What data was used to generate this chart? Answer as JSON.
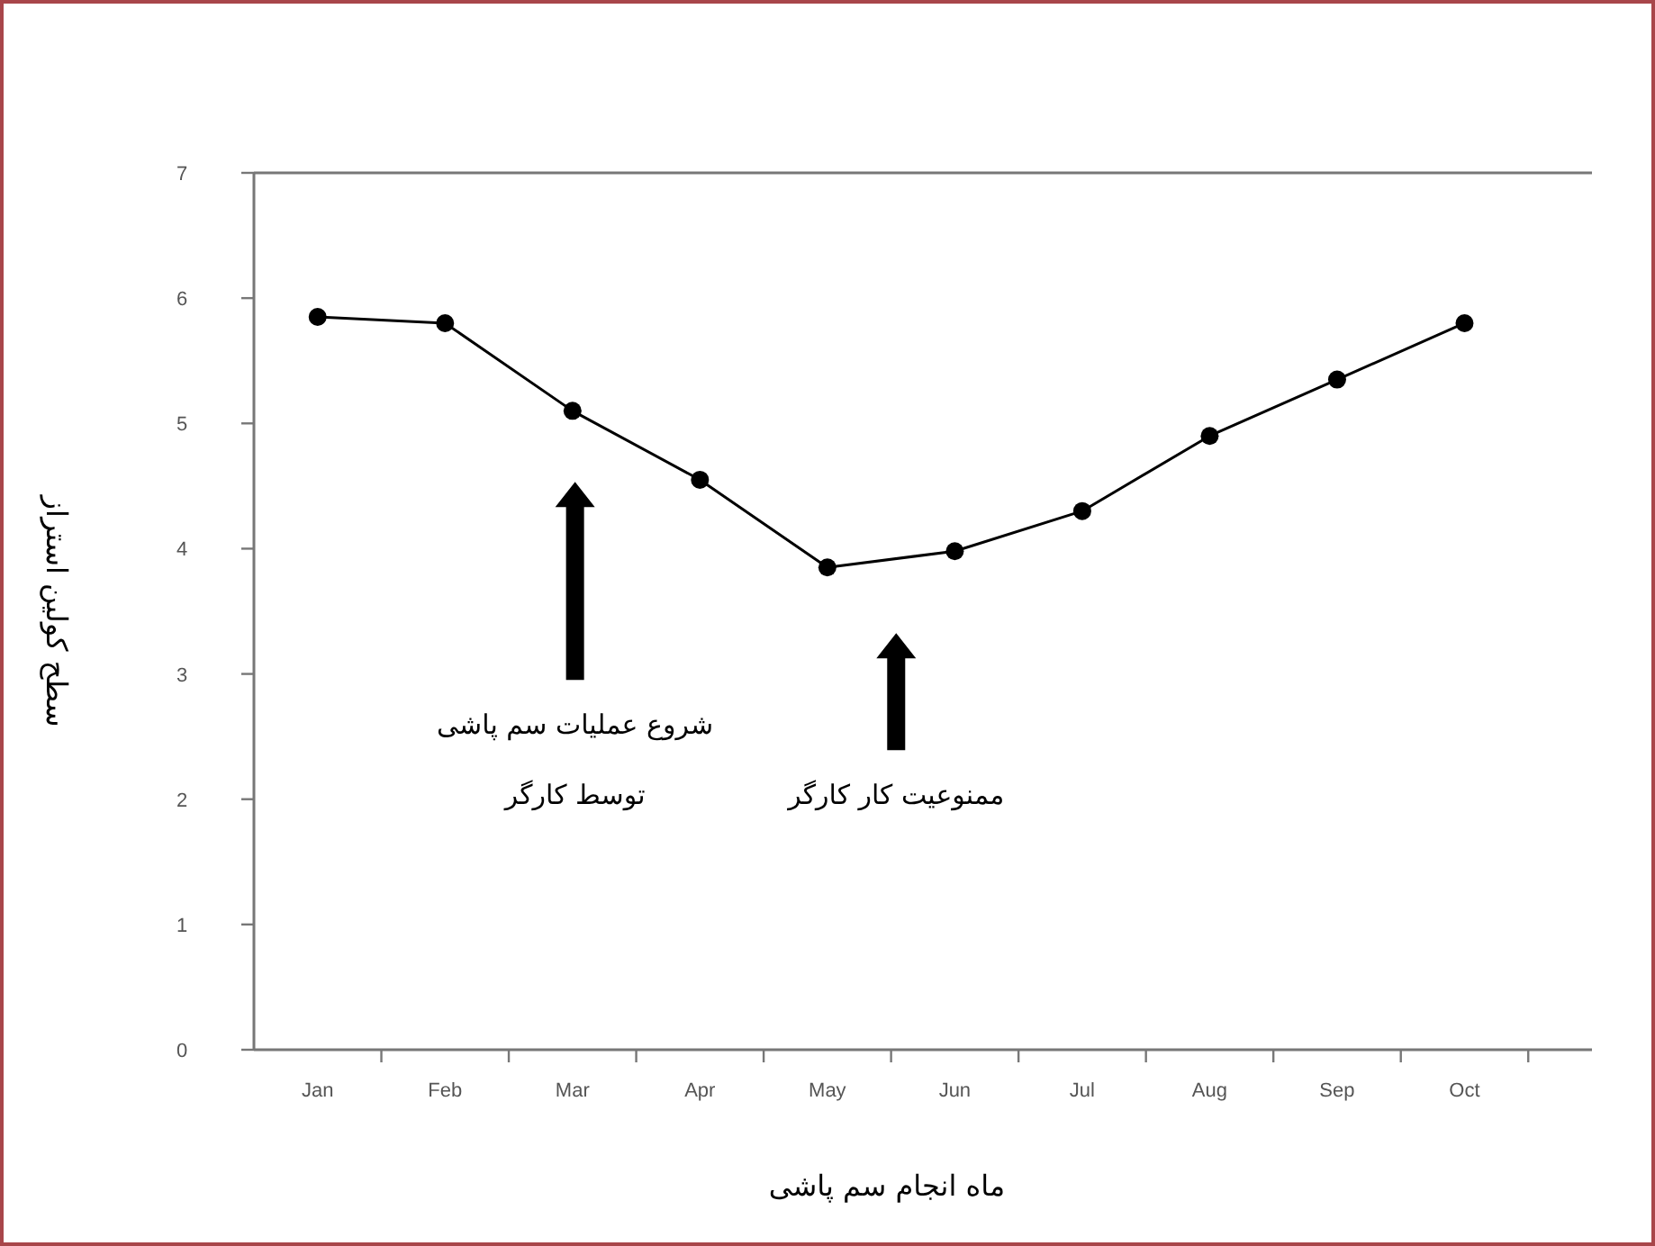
{
  "chart_data": {
    "type": "line",
    "xlabel": "ماه انجام سم پاشی",
    "ylabel": "سطح کولین استراز",
    "categories": [
      "Jan",
      "Feb",
      "Mar",
      "Apr",
      "May",
      "Jun",
      "Jul",
      "Aug",
      "Sep",
      "Oct"
    ],
    "series": [
      {
        "color": "#000000",
        "values": [
          5.85,
          5.8,
          5.1,
          4.55,
          3.85,
          3.98,
          4.3,
          4.9,
          5.35,
          5.8
        ]
      }
    ],
    "ylim": [
      0,
      7
    ],
    "yticks": [
      0,
      1,
      2,
      3,
      4,
      5,
      6,
      7
    ],
    "grid": false,
    "marker": "circle",
    "line_style": "solid",
    "annotations": [
      "شروع عملیات سم پاشی",
      "توسط کارگر",
      "ممنوعیت کار کارگر"
    ]
  }
}
